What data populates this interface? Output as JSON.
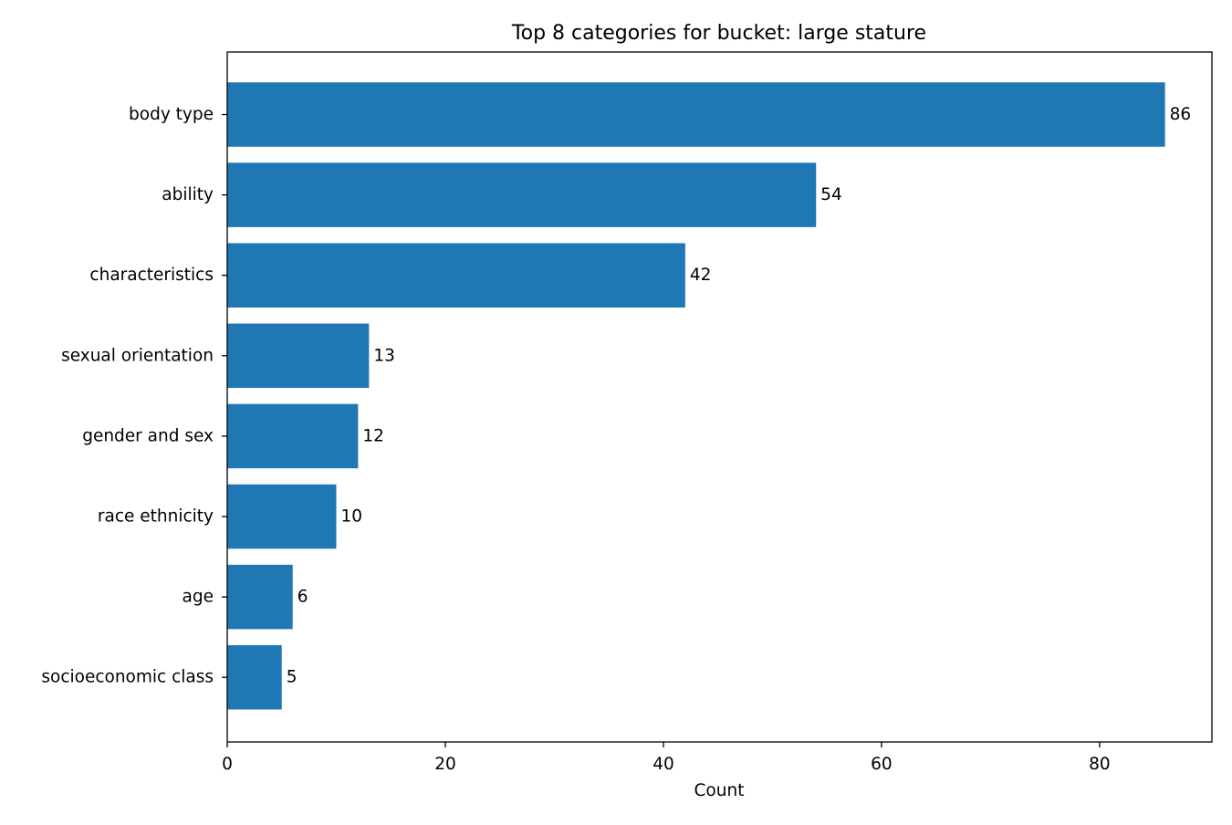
{
  "chart_data": {
    "type": "bar",
    "orientation": "horizontal",
    "title": "Top 8 categories for bucket: large stature",
    "xlabel": "Count",
    "ylabel": "",
    "xlim": [
      0,
      90.3
    ],
    "x_ticks": [
      0,
      20,
      40,
      60,
      80
    ],
    "grid": false,
    "legend": "none",
    "bar_color": "#1f77b4",
    "categories": [
      "body type",
      "ability",
      "characteristics",
      "sexual orientation",
      "gender and sex",
      "race ethnicity",
      "age",
      "socioeconomic class"
    ],
    "values": [
      86,
      54,
      42,
      13,
      12,
      10,
      6,
      5
    ]
  }
}
